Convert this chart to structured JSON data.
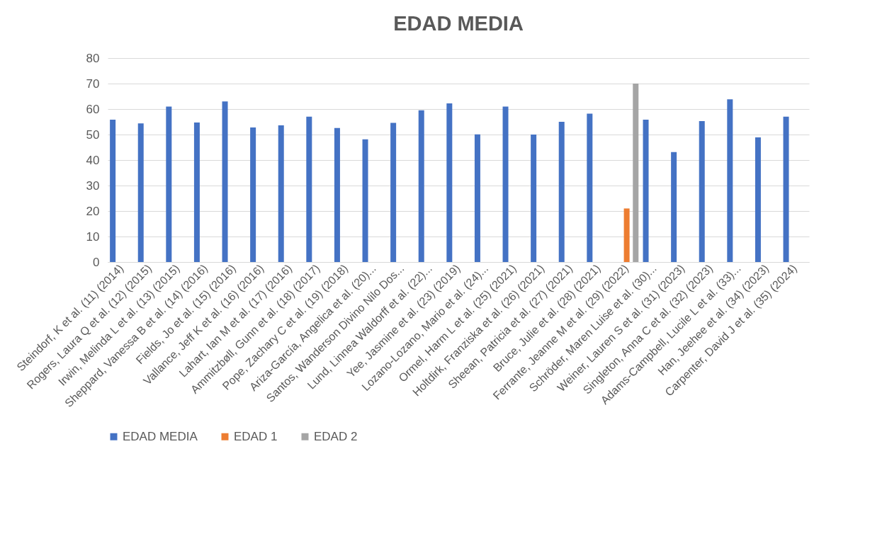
{
  "chart_data": {
    "type": "bar",
    "title": "EDAD MEDIA",
    "categories": [
      "Steindorf, K et al. (11) (2014)",
      "Rogers, Laura Q et al. (12) (2015)",
      "Irwin, Melinda L et al. (13) (2015)",
      "Sheppard, Vanessa B et al. (14) (2016)",
      "Fields, Jo et al. (15) (2016)",
      "Vallance, Jeff K et al. (16) (2016)",
      "Lahart, Ian M et al. (17) (2016)",
      "Ammitzbøll, Gunn et al. (18) (2017)",
      "Pope, Zachary C et al. (19) (2018)",
      "Ariza-García, Angelica et al. (20)...",
      "Santos, Wanderson Divino Nilo Dos...",
      "Lund, Linnea Waldorff et al. (22)...",
      "Yee, Jasmine et al. (23) (2019)",
      "Lozano-Lozano, Mario et al. (24)...",
      "Ormel, Harm L et al. (25) (2021)",
      "Holtdirk, Franziska et al. (26) (2021)",
      "Sheean, Patricia et al. (27) (2021)",
      "Bruce, Julie et al. (28) (2021)",
      "Ferrante, Jeanne M et al. (29) (2022)",
      "Schröder, Maren Luise et al. (30)...",
      "Weiner, Lauren S et al. (31) (2023)",
      "Singleton, Anna C et al. (32) (2023)",
      "Adams-Campbell, Lucile L et al. (33)...",
      "Han, Jeehee et al. (34) (2023)",
      "Carpenter, David J et al. (35) (2024)"
    ],
    "series": [
      {
        "name": "EDAD MEDIA",
        "color": "#4472c4",
        "values": [
          55.8,
          54.4,
          61,
          54.7,
          63,
          52.8,
          53.6,
          57,
          52.6,
          48.1,
          54.6,
          59.5,
          62.2,
          50.1,
          61,
          50,
          55,
          58.2,
          null,
          55.8,
          43.1,
          55.3,
          63.8,
          48.9,
          57
        ]
      },
      {
        "name": "EDAD 1",
        "color": "#ed7d31",
        "values": [
          null,
          null,
          null,
          null,
          null,
          null,
          null,
          null,
          null,
          null,
          null,
          null,
          null,
          null,
          null,
          null,
          null,
          null,
          21,
          null,
          null,
          null,
          null,
          null,
          null
        ]
      },
      {
        "name": "EDAD 2",
        "color": "#a5a5a5",
        "values": [
          null,
          null,
          null,
          null,
          null,
          null,
          null,
          null,
          null,
          null,
          null,
          null,
          null,
          null,
          null,
          null,
          null,
          null,
          70,
          null,
          null,
          null,
          null,
          null,
          null
        ]
      }
    ],
    "ylim": [
      0,
      80
    ],
    "yticks": [
      0,
      10,
      20,
      30,
      40,
      50,
      60,
      70,
      80
    ],
    "grid": "y",
    "legend": "bottom"
  }
}
